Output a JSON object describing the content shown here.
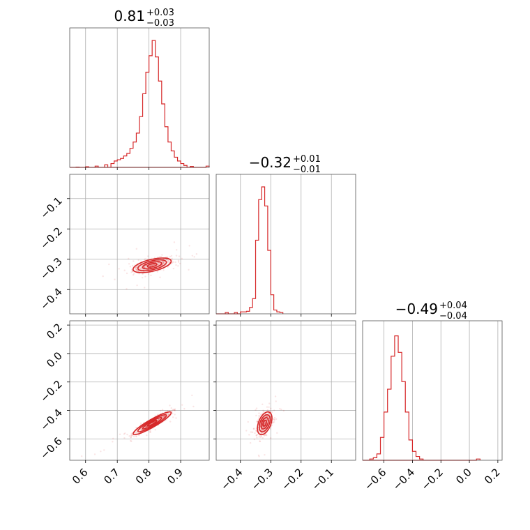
{
  "chart_data": {
    "type": "corner",
    "color": "#d62728",
    "grid": true,
    "parameters": [
      {
        "range": [
          0.55,
          0.99
        ],
        "ticks": [
          0.6,
          0.7,
          0.8,
          0.9
        ],
        "tick_labels": [
          "0.6",
          "0.7",
          "0.8",
          "0.9"
        ],
        "title": {
          "median": "0.81",
          "plus": "+0.03",
          "minus": "−0.03"
        }
      },
      {
        "range": [
          -0.48,
          -0.02
        ],
        "ticks": [
          -0.4,
          -0.3,
          -0.2,
          -0.1
        ],
        "tick_labels": [
          "−0.4",
          "−0.3",
          "−0.2",
          "−0.1"
        ],
        "title": {
          "median": "−0.32",
          "plus": "+0.01",
          "minus": "−0.01"
        }
      },
      {
        "range": [
          -0.75,
          0.23
        ],
        "ticks": [
          -0.6,
          -0.4,
          -0.2,
          0.0,
          0.2
        ],
        "tick_labels": [
          "−0.6",
          "−0.4",
          "−0.2",
          "0.0",
          "0.2"
        ],
        "title": {
          "median": "−0.49",
          "plus": "+0.04",
          "minus": "−0.04"
        }
      }
    ],
    "histograms": [
      {
        "param": 0,
        "bin_width": 0.01,
        "bins": [
          [
            0.57,
            0.002
          ],
          [
            0.6,
            0.005
          ],
          [
            0.63,
            0.01
          ],
          [
            0.66,
            0.02
          ],
          [
            0.68,
            0.03
          ],
          [
            0.69,
            0.05
          ],
          [
            0.7,
            0.06
          ],
          [
            0.71,
            0.07
          ],
          [
            0.72,
            0.09
          ],
          [
            0.73,
            0.11
          ],
          [
            0.74,
            0.15
          ],
          [
            0.75,
            0.2
          ],
          [
            0.76,
            0.27
          ],
          [
            0.77,
            0.4
          ],
          [
            0.78,
            0.58
          ],
          [
            0.79,
            0.75
          ],
          [
            0.8,
            0.88
          ],
          [
            0.81,
            1.0
          ],
          [
            0.82,
            0.87
          ],
          [
            0.83,
            0.68
          ],
          [
            0.84,
            0.5
          ],
          [
            0.85,
            0.32
          ],
          [
            0.86,
            0.2
          ],
          [
            0.87,
            0.13
          ],
          [
            0.88,
            0.08
          ],
          [
            0.89,
            0.05
          ],
          [
            0.9,
            0.03
          ],
          [
            0.91,
            0.015
          ],
          [
            0.93,
            0.008
          ],
          [
            0.98,
            0.01
          ]
        ]
      },
      {
        "param": 1,
        "bin_width": 0.01,
        "bins": [
          [
            -0.45,
            0.01
          ],
          [
            -0.42,
            0.01
          ],
          [
            -0.4,
            0.015
          ],
          [
            -0.39,
            0.015
          ],
          [
            -0.38,
            0.02
          ],
          [
            -0.37,
            0.05
          ],
          [
            -0.36,
            0.12
          ],
          [
            -0.35,
            0.58
          ],
          [
            -0.34,
            0.9
          ],
          [
            -0.33,
            1.0
          ],
          [
            -0.32,
            0.85
          ],
          [
            -0.31,
            0.5
          ],
          [
            -0.3,
            0.15
          ],
          [
            -0.29,
            0.03
          ],
          [
            -0.28,
            0.015
          ],
          [
            -0.27,
            0.01
          ]
        ]
      },
      {
        "param": 2,
        "bin_width": 0.025,
        "bins": [
          [
            -0.7,
            0.01
          ],
          [
            -0.675,
            0.02
          ],
          [
            -0.65,
            0.05
          ],
          [
            -0.625,
            0.18
          ],
          [
            -0.6,
            0.38
          ],
          [
            -0.575,
            0.56
          ],
          [
            -0.55,
            0.82
          ],
          [
            -0.525,
            0.98
          ],
          [
            -0.5,
            0.85
          ],
          [
            -0.475,
            0.62
          ],
          [
            -0.45,
            0.38
          ],
          [
            -0.425,
            0.16
          ],
          [
            -0.4,
            0.07
          ],
          [
            -0.375,
            0.03
          ],
          [
            -0.35,
            0.01
          ],
          [
            0.05,
            0.01
          ]
        ]
      }
    ],
    "joint": [
      {
        "x": 0,
        "y": 1,
        "center": [
          0.81,
          -0.32
        ],
        "sigma": [
          0.03,
          0.012
        ],
        "rho": 0.55
      },
      {
        "x": 0,
        "y": 2,
        "center": [
          0.81,
          -0.49
        ],
        "sigma": [
          0.03,
          0.04
        ],
        "rho": 0.92
      },
      {
        "x": 1,
        "y": 2,
        "center": [
          -0.32,
          -0.49
        ],
        "sigma": [
          0.012,
          0.04
        ],
        "rho": 0.45
      }
    ]
  }
}
